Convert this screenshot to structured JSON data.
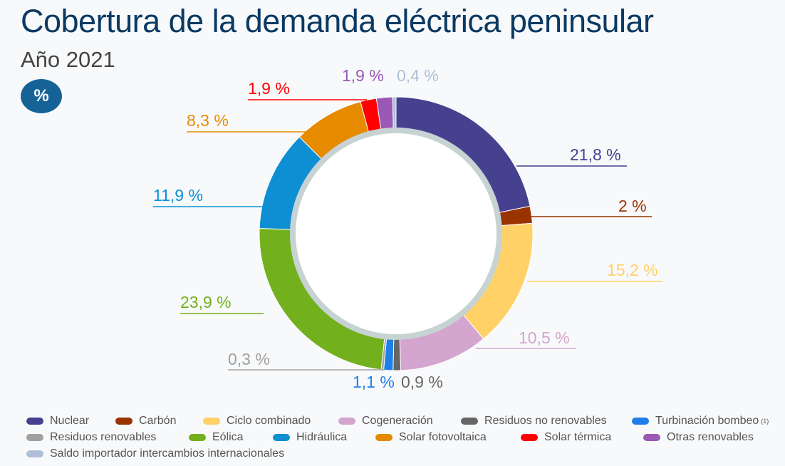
{
  "chart_data": {
    "type": "pie",
    "variant": "donut",
    "title": "Cobertura de la demanda eléctrica peninsular",
    "subtitle": "Año 2021",
    "unit_badge": "%",
    "legend_position": "bottom",
    "slices": [
      {
        "name": "Nuclear",
        "value": 21.8,
        "label": "21,8 %",
        "color": "#45418f"
      },
      {
        "name": "Carbón",
        "value": 2,
        "label": "2 %",
        "color": "#993300"
      },
      {
        "name": "Ciclo combinado",
        "value": 15.2,
        "label": "15,2 %",
        "color": "#ffd166"
      },
      {
        "name": "Cogeneración",
        "value": 10.5,
        "label": "10,5 %",
        "color": "#d4a5cf"
      },
      {
        "name": "Residuos no renovables",
        "value": 0.9,
        "label": "0,9 %",
        "color": "#666666"
      },
      {
        "name": "Turbinación bombeo",
        "value": 1.1,
        "label": "1,1 %",
        "color": "#1e7fe8",
        "note": "(1)"
      },
      {
        "name": "Residuos renovables",
        "value": 0.3,
        "label": "0,3 %",
        "color": "#a0a0a0"
      },
      {
        "name": "Eólica",
        "value": 23.9,
        "label": "23,9 %",
        "color": "#72b01d"
      },
      {
        "name": "Hidráulica",
        "value": 11.9,
        "label": "11,9 %",
        "color": "#0e8fd4"
      },
      {
        "name": "Solar fotovoltaica",
        "value": 8.3,
        "label": "8,3 %",
        "color": "#e68a00"
      },
      {
        "name": "Solar térmica",
        "value": 1.9,
        "label": "1,9 %",
        "color": "#ff0000"
      },
      {
        "name": "Otras renovables",
        "value": 1.9,
        "label": "1,9 %",
        "color": "#9b59b6"
      },
      {
        "name": "Saldo importador intercambios internacionales",
        "value": 0.4,
        "label": "0,4 %",
        "color": "#b0bfd8"
      }
    ]
  }
}
